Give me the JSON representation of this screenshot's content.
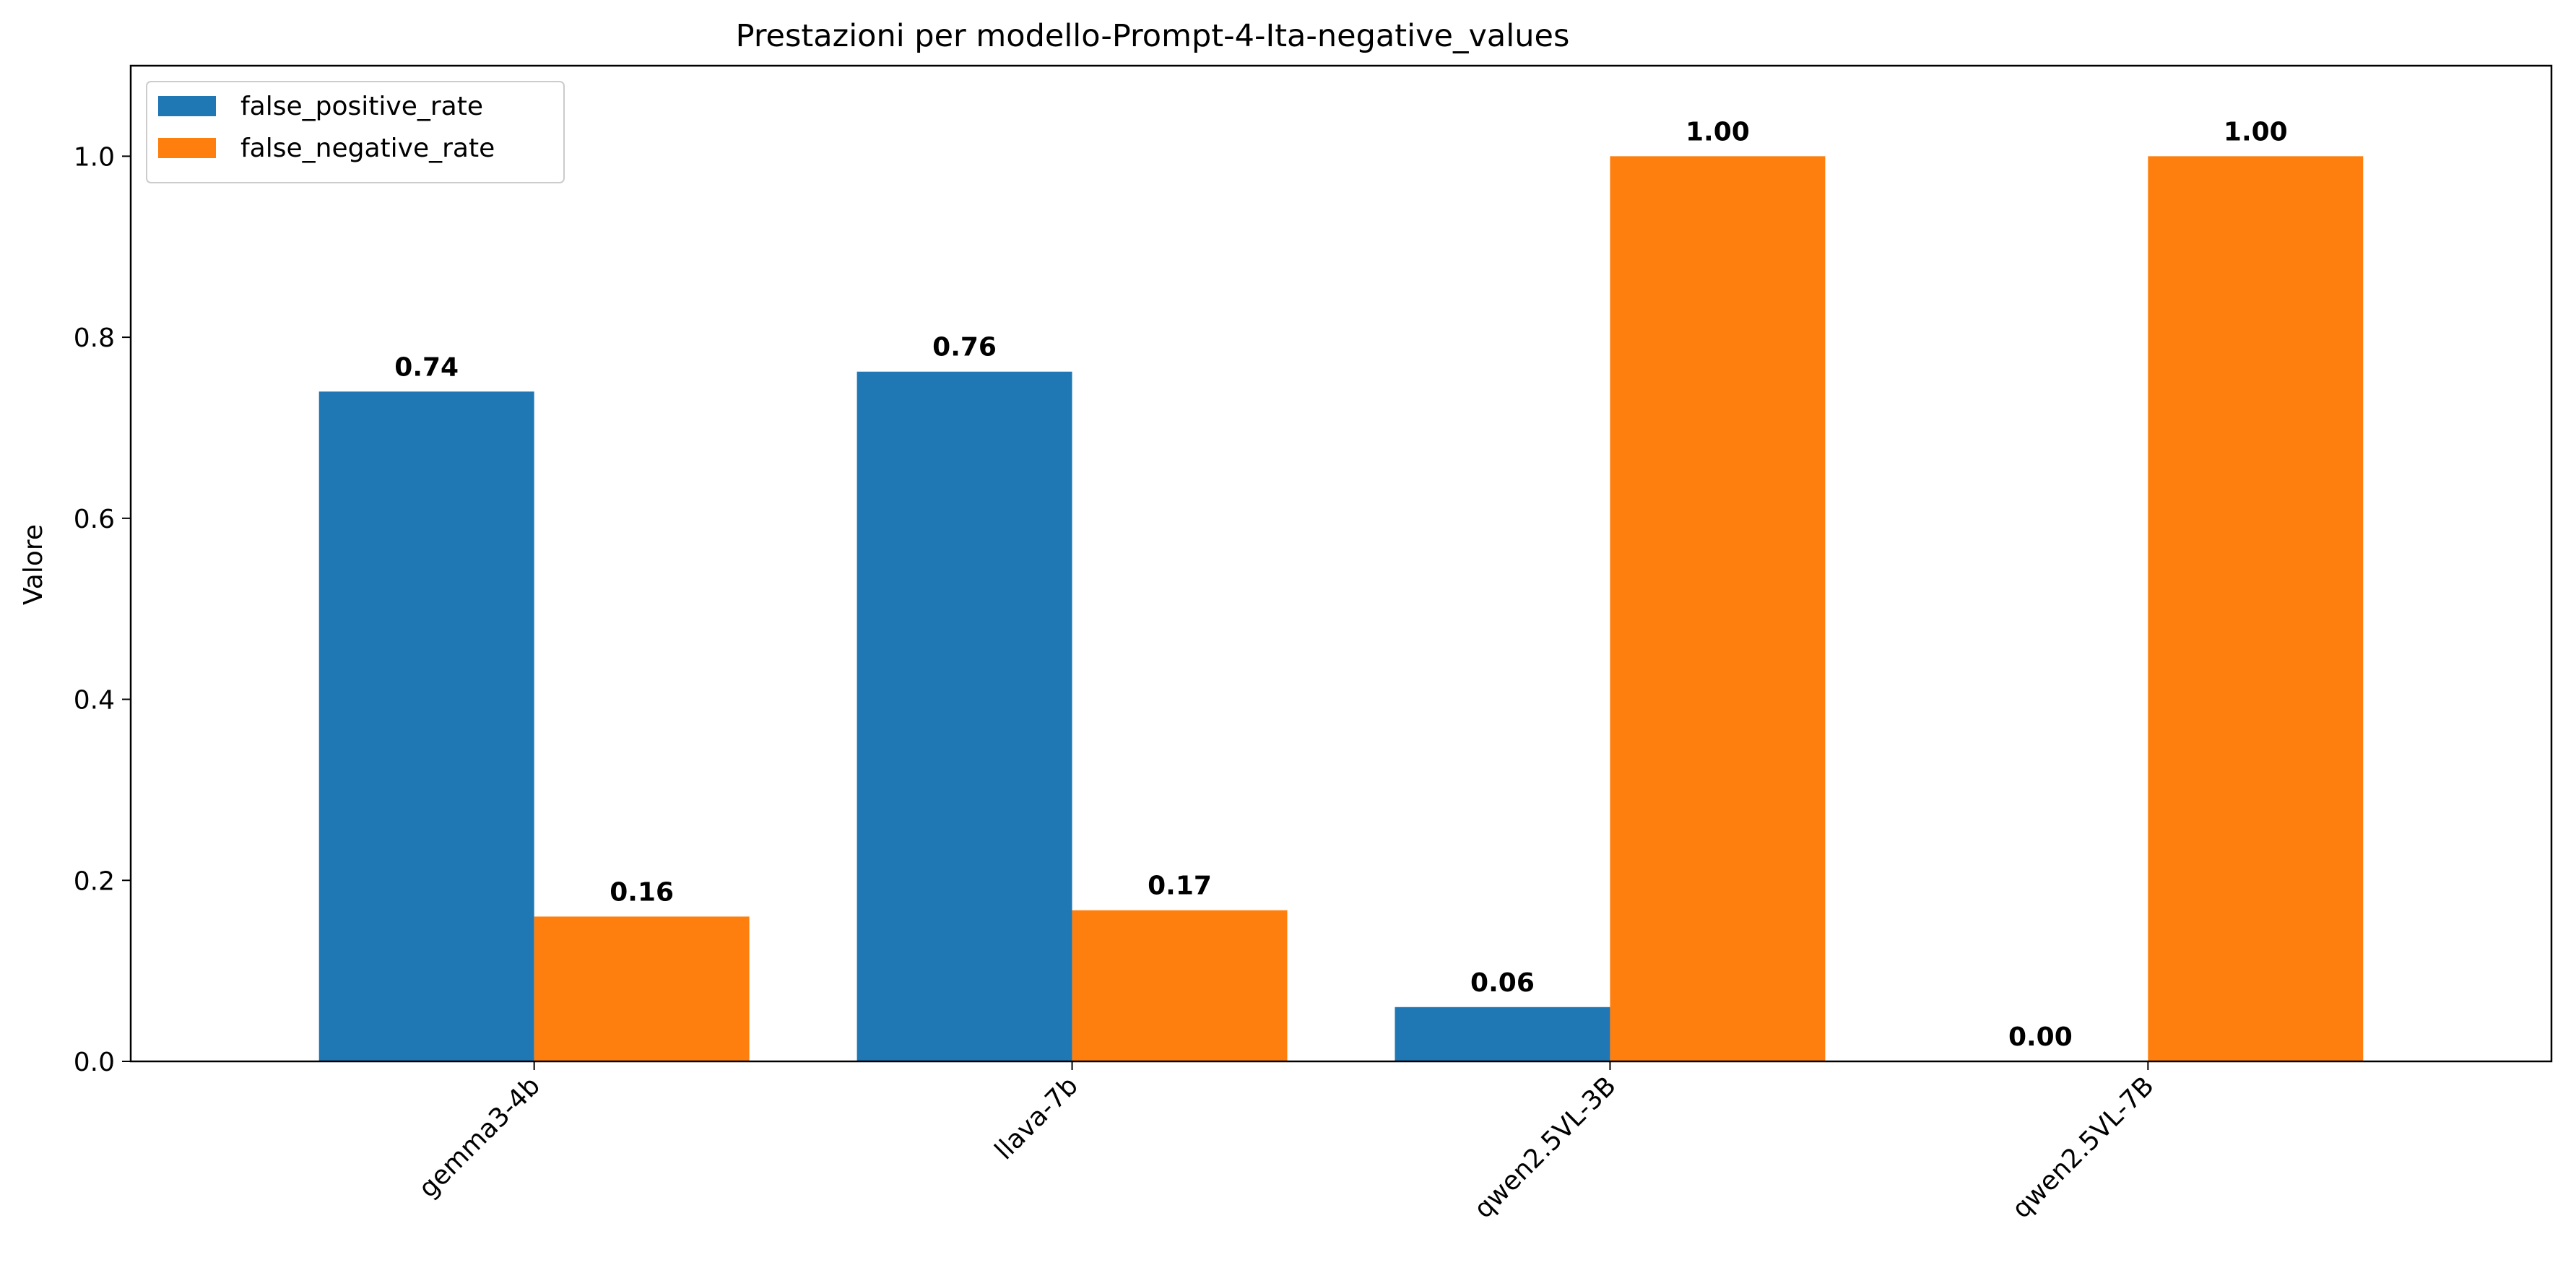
{
  "chart_data": {
    "type": "bar",
    "title": "Prestazioni per modello-Prompt-4-Ita-negative_values",
    "xlabel": "",
    "ylabel": "Valore",
    "categories": [
      "gemma3-4b",
      "llava-7b",
      "qwen2.5VL-3B",
      "qwen2.5VL-7B"
    ],
    "series": [
      {
        "name": "false_positive_rate",
        "color": "#1f77b4",
        "values": [
          0.74,
          0.762,
          0.06,
          0.0
        ],
        "labels": [
          "0.74",
          "0.76",
          "0.06",
          "0.00"
        ]
      },
      {
        "name": "false_negative_rate",
        "color": "#ff7f0e",
        "values": [
          0.16,
          0.167,
          1.0,
          1.0
        ],
        "labels": [
          "0.16",
          "0.17",
          "1.00",
          "1.00"
        ]
      }
    ],
    "ylim": [
      0,
      1.1
    ],
    "yticks": [
      "0.0",
      "0.2",
      "0.4",
      "0.6",
      "0.8",
      "1.0"
    ],
    "grid": false,
    "legend_position": "upper-left"
  }
}
